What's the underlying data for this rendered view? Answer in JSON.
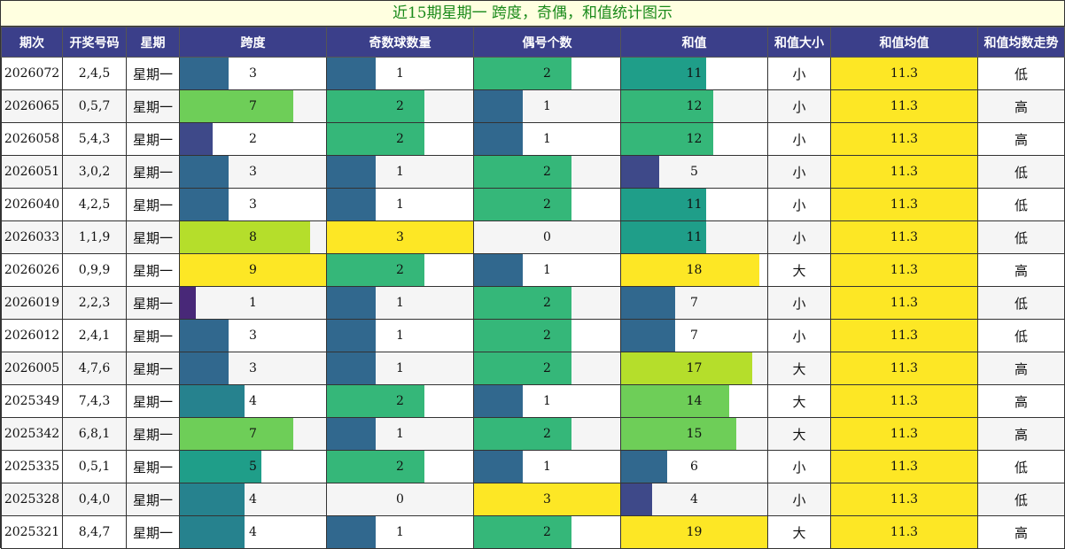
{
  "title": "近15期星期一 跨度，奇偶，和值统计图示",
  "headers": {
    "issue": "期次",
    "numbers": "开奖号码",
    "weekday": "星期",
    "span": "跨度",
    "odd": "奇数球数量",
    "even": "偶号个数",
    "sum": "和值",
    "size": "和值大小",
    "avg": "和值均值",
    "trend": "和值均数走势"
  },
  "colors": {
    "header_bg": "#3b3f8a",
    "title_bg": "#ffffe0",
    "title_text": "#1a8a1a",
    "avg_bg": "#fde725"
  },
  "chart_data": {
    "type": "table",
    "max": {
      "span": 9,
      "odd": 3,
      "even": 3,
      "sum": 19
    },
    "rows": [
      {
        "issue": "2026072",
        "numbers": "2,4,5",
        "weekday": "星期一",
        "span": 3,
        "odd": 1,
        "even": 2,
        "sum": 11,
        "size": "小",
        "avg": "11.3",
        "trend": "低"
      },
      {
        "issue": "2026065",
        "numbers": "0,5,7",
        "weekday": "星期一",
        "span": 7,
        "odd": 2,
        "even": 1,
        "sum": 12,
        "size": "小",
        "avg": "11.3",
        "trend": "高"
      },
      {
        "issue": "2026058",
        "numbers": "5,4,3",
        "weekday": "星期一",
        "span": 2,
        "odd": 2,
        "even": 1,
        "sum": 12,
        "size": "小",
        "avg": "11.3",
        "trend": "高"
      },
      {
        "issue": "2026051",
        "numbers": "3,0,2",
        "weekday": "星期一",
        "span": 3,
        "odd": 1,
        "even": 2,
        "sum": 5,
        "size": "小",
        "avg": "11.3",
        "trend": "低"
      },
      {
        "issue": "2026040",
        "numbers": "4,2,5",
        "weekday": "星期一",
        "span": 3,
        "odd": 1,
        "even": 2,
        "sum": 11,
        "size": "小",
        "avg": "11.3",
        "trend": "低"
      },
      {
        "issue": "2026033",
        "numbers": "1,1,9",
        "weekday": "星期一",
        "span": 8,
        "odd": 3,
        "even": 0,
        "sum": 11,
        "size": "小",
        "avg": "11.3",
        "trend": "低"
      },
      {
        "issue": "2026026",
        "numbers": "0,9,9",
        "weekday": "星期一",
        "span": 9,
        "odd": 2,
        "even": 1,
        "sum": 18,
        "size": "大",
        "avg": "11.3",
        "trend": "高"
      },
      {
        "issue": "2026019",
        "numbers": "2,2,3",
        "weekday": "星期一",
        "span": 1,
        "odd": 1,
        "even": 2,
        "sum": 7,
        "size": "小",
        "avg": "11.3",
        "trend": "低"
      },
      {
        "issue": "2026012",
        "numbers": "2,4,1",
        "weekday": "星期一",
        "span": 3,
        "odd": 1,
        "even": 2,
        "sum": 7,
        "size": "小",
        "avg": "11.3",
        "trend": "低"
      },
      {
        "issue": "2026005",
        "numbers": "4,7,6",
        "weekday": "星期一",
        "span": 3,
        "odd": 1,
        "even": 2,
        "sum": 17,
        "size": "大",
        "avg": "11.3",
        "trend": "高"
      },
      {
        "issue": "2025349",
        "numbers": "7,4,3",
        "weekday": "星期一",
        "span": 4,
        "odd": 2,
        "even": 1,
        "sum": 14,
        "size": "大",
        "avg": "11.3",
        "trend": "高"
      },
      {
        "issue": "2025342",
        "numbers": "6,8,1",
        "weekday": "星期一",
        "span": 7,
        "odd": 1,
        "even": 2,
        "sum": 15,
        "size": "大",
        "avg": "11.3",
        "trend": "高"
      },
      {
        "issue": "2025335",
        "numbers": "0,5,1",
        "weekday": "星期一",
        "span": 5,
        "odd": 2,
        "even": 1,
        "sum": 6,
        "size": "小",
        "avg": "11.3",
        "trend": "低"
      },
      {
        "issue": "2025328",
        "numbers": "0,4,0",
        "weekday": "星期一",
        "span": 4,
        "odd": 0,
        "even": 3,
        "sum": 4,
        "size": "小",
        "avg": "11.3",
        "trend": "低"
      },
      {
        "issue": "2025321",
        "numbers": "8,4,7",
        "weekday": "星期一",
        "span": 4,
        "odd": 1,
        "even": 2,
        "sum": 19,
        "size": "大",
        "avg": "11.3",
        "trend": "高"
      }
    ]
  }
}
